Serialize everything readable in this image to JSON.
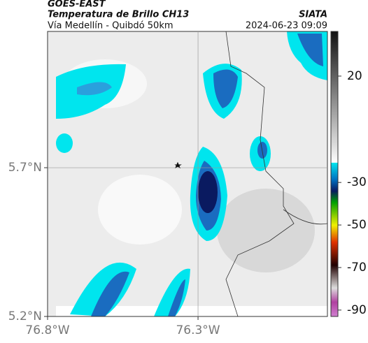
{
  "header": {
    "source": "GOES-EAST",
    "title": "Temperatura de Brillo CH13",
    "credit": "SIATA",
    "subtitle": "Vía Medellín - Quibdó 50km",
    "datetime": "2024-06-23 09:09"
  },
  "map": {
    "xlim": [
      -76.8,
      -75.87
    ],
    "ylim": [
      5.2,
      6.158
    ],
    "xticks": [
      {
        "value": -76.8,
        "label": "76.8°W"
      },
      {
        "value": -76.3,
        "label": "76.3°W"
      }
    ],
    "yticks": [
      {
        "value": 5.2,
        "label": "5.2°N"
      },
      {
        "value": 5.7,
        "label": "5.7°N"
      }
    ],
    "colorbar": {
      "clim": [
        -93,
        41
      ],
      "ticks": [
        20,
        -30,
        -50,
        -70,
        -90
      ]
    }
  }
}
